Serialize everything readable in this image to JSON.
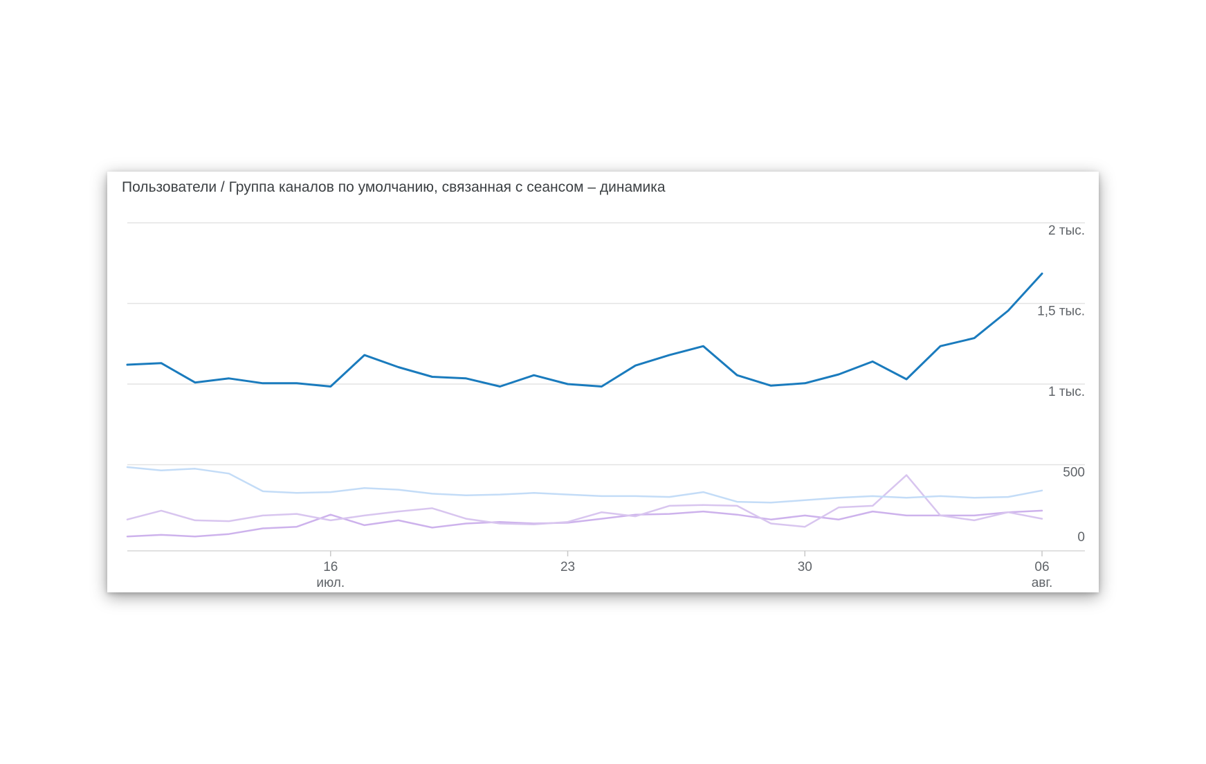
{
  "chart_data": {
    "type": "line",
    "title": "Пользователи / Группа каналов по умолчанию, связанная с сеансом – динамика",
    "x": [
      "2024-07-10",
      "2024-07-11",
      "2024-07-12",
      "2024-07-13",
      "2024-07-14",
      "2024-07-15",
      "2024-07-16",
      "2024-07-17",
      "2024-07-18",
      "2024-07-19",
      "2024-07-20",
      "2024-07-21",
      "2024-07-22",
      "2024-07-23",
      "2024-07-24",
      "2024-07-25",
      "2024-07-26",
      "2024-07-27",
      "2024-07-28",
      "2024-07-29",
      "2024-07-30",
      "2024-07-31",
      "2024-08-01",
      "2024-08-02",
      "2024-08-03",
      "2024-08-04",
      "2024-08-05",
      "2024-08-06"
    ],
    "ylim": [
      0,
      2000
    ],
    "grid": true,
    "legend": "none",
    "y_ticks": [
      {
        "value": 2000,
        "label": "2 тыс."
      },
      {
        "value": 1500,
        "label": "1,5 тыс."
      },
      {
        "value": 1000,
        "label": "1 тыс."
      },
      {
        "value": 500,
        "label": "500"
      },
      {
        "value": 0,
        "label": "0"
      }
    ],
    "x_ticks": [
      {
        "date": "2024-07-16",
        "label": "16",
        "sublabel": "июл."
      },
      {
        "date": "2024-07-23",
        "label": "23",
        "sublabel": ""
      },
      {
        "date": "2024-07-30",
        "label": "30",
        "sublabel": ""
      },
      {
        "date": "2024-08-06",
        "label": "06",
        "sublabel": "авг."
      }
    ],
    "series": [
      {
        "color": "#1a7bbd",
        "width": 3,
        "values": [
          1120,
          1130,
          1010,
          1035,
          1005,
          1005,
          985,
          1180,
          1105,
          1045,
          1035,
          985,
          1055,
          1000,
          985,
          1115,
          1180,
          1235,
          1055,
          990,
          1005,
          1060,
          1140,
          1030,
          1235,
          1285,
          1455,
          1685
        ]
      },
      {
        "color": "#c3dcf7",
        "width": 2.5,
        "values": [
          485,
          465,
          475,
          445,
          335,
          325,
          330,
          355,
          345,
          320,
          310,
          315,
          325,
          315,
          305,
          305,
          300,
          330,
          270,
          265,
          280,
          295,
          305,
          295,
          305,
          295,
          300,
          340
        ]
      },
      {
        "color": "#d8c5ef",
        "width": 2.5,
        "values": [
          160,
          215,
          155,
          150,
          185,
          195,
          155,
          185,
          210,
          230,
          165,
          135,
          130,
          145,
          205,
          180,
          245,
          250,
          245,
          135,
          115,
          235,
          245,
          435,
          185,
          155,
          205,
          165
        ]
      },
      {
        "color": "#cdb2ec",
        "width": 2.5,
        "values": [
          55,
          65,
          55,
          70,
          105,
          115,
          190,
          125,
          155,
          110,
          135,
          145,
          135,
          140,
          165,
          190,
          195,
          210,
          190,
          160,
          185,
          160,
          210,
          185,
          185,
          185,
          205,
          215
        ]
      }
    ]
  }
}
